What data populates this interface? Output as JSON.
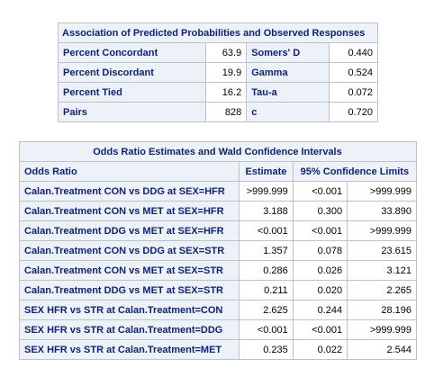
{
  "association": {
    "title": "Association of Predicted Probabilities and Observed Responses",
    "rows": [
      {
        "label1": "Percent Concordant",
        "value1": "63.9",
        "label2": "Somers' D",
        "value2": "0.440"
      },
      {
        "label1": "Percent Discordant",
        "value1": "19.9",
        "label2": "Gamma",
        "value2": "0.524"
      },
      {
        "label1": "Percent Tied",
        "value1": "16.2",
        "label2": "Tau-a",
        "value2": "0.072"
      },
      {
        "label1": "Pairs",
        "value1": "828",
        "label2": "c",
        "value2": "0.720"
      }
    ]
  },
  "odds_ratio": {
    "title": "Odds Ratio Estimates and Wald Confidence Intervals",
    "col_label": "Odds Ratio",
    "col_estimate": "Estimate",
    "col_ci": "95% Confidence Limits",
    "rows": [
      {
        "label": "Calan.Treatment CON vs DDG at SEX=HFR",
        "estimate": ">999.999",
        "lower": "<0.001",
        "upper": ">999.999"
      },
      {
        "label": "Calan.Treatment CON vs MET at SEX=HFR",
        "estimate": "3.188",
        "lower": "0.300",
        "upper": "33.890"
      },
      {
        "label": "Calan.Treatment DDG vs MET at SEX=HFR",
        "estimate": "<0.001",
        "lower": "<0.001",
        "upper": ">999.999"
      },
      {
        "label": "Calan.Treatment CON vs DDG at SEX=STR",
        "estimate": "1.357",
        "lower": "0.078",
        "upper": "23.615"
      },
      {
        "label": "Calan.Treatment CON vs MET at SEX=STR",
        "estimate": "0.286",
        "lower": "0.026",
        "upper": "3.121"
      },
      {
        "label": "Calan.Treatment DDG vs MET at SEX=STR",
        "estimate": "0.211",
        "lower": "0.020",
        "upper": "2.265"
      },
      {
        "label": "SEX HFR vs STR at Calan.Treatment=CON",
        "estimate": "2.625",
        "lower": "0.244",
        "upper": "28.196"
      },
      {
        "label": "SEX HFR vs STR at Calan.Treatment=DDG",
        "estimate": "<0.001",
        "lower": "<0.001",
        "upper": ">999.999"
      },
      {
        "label": "SEX HFR vs STR at Calan.Treatment=MET",
        "estimate": "0.235",
        "lower": "0.022",
        "upper": "2.544"
      }
    ]
  }
}
